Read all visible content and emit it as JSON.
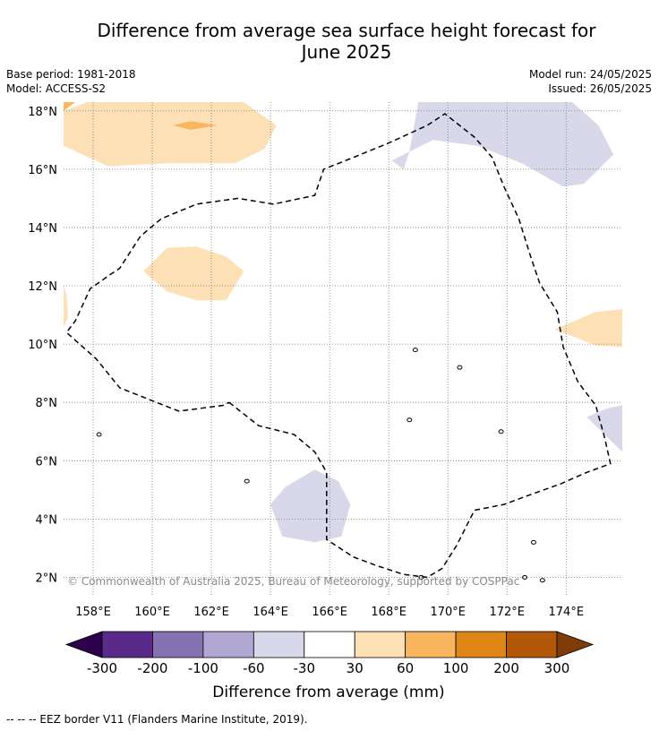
{
  "header": {
    "title_line1": "Difference from average sea surface height forecast for",
    "title_line2": "June 2025",
    "base_period": "Base period: 1981-2018",
    "model": "Model: ACCESS-S2",
    "model_run": "Model run: 24/05/2025",
    "issued": "Issued: 26/05/2025"
  },
  "map": {
    "copyright": "© Commonwealth of Australia 2025, Bureau of Meteorology, supported by COSPPac",
    "lon_ticks": [
      "158°E",
      "160°E",
      "162°E",
      "164°E",
      "166°E",
      "168°E",
      "170°E",
      "172°E",
      "174°E"
    ],
    "lat_ticks": [
      "18°N",
      "16°N",
      "14°N",
      "12°N",
      "10°N",
      "8°N",
      "6°N",
      "4°N",
      "2°N"
    ]
  },
  "colorbar": {
    "label": "Difference from average (mm)",
    "tick_labels": [
      "-300",
      "-200",
      "-100",
      "-60",
      "-30",
      "30",
      "60",
      "100",
      "200",
      "300"
    ],
    "colors": [
      "#592a8a",
      "#8572b0",
      "#b0a8d2",
      "#d8d8ea",
      "#ffffff",
      "#fde0b6",
      "#f9b65f",
      "#e08518",
      "#b35808"
    ],
    "under_color": "#2d004b",
    "over_color": "#7f3b08"
  },
  "footer": {
    "legend_text": "-- -- -- EEZ border V11 (Flanders Marine Institute, 2019)."
  },
  "chart_data": {
    "type": "heatmap",
    "title": "Difference from average sea surface height forecast for June 2025",
    "xlabel": "",
    "ylabel": "",
    "xlim": [
      157.0,
      175.9
    ],
    "ylim": [
      1.4,
      18.3
    ],
    "x_ticks": [
      158,
      160,
      162,
      164,
      166,
      168,
      170,
      172,
      174
    ],
    "y_ticks": [
      2,
      4,
      6,
      8,
      10,
      12,
      14,
      16,
      18
    ],
    "grid": true,
    "colorbar_levels_mm": [
      -300,
      -200,
      -100,
      -60,
      -30,
      30,
      60,
      100,
      200,
      300
    ],
    "regions": [
      {
        "level": "30 to 60",
        "polygon": [
          [
            157,
            18
          ],
          [
            157.8,
            18.3
          ],
          [
            163.1,
            18.3
          ],
          [
            164.2,
            17.5
          ],
          [
            163.8,
            16.7
          ],
          [
            162.8,
            16.2
          ],
          [
            160.5,
            16.2
          ],
          [
            158.5,
            16.1
          ],
          [
            157,
            16.8
          ]
        ]
      },
      {
        "level": "60 to 100",
        "polygon": [
          [
            157,
            18
          ],
          [
            157.4,
            18.3
          ],
          [
            157,
            18.3
          ]
        ]
      },
      {
        "level": "60 to 100",
        "polygon": [
          [
            160.7,
            17.5
          ],
          [
            161.3,
            17.65
          ],
          [
            162.2,
            17.5
          ],
          [
            161.3,
            17.35
          ]
        ]
      },
      {
        "level": "30 to 60",
        "polygon": [
          [
            159.7,
            12.5
          ],
          [
            160.5,
            13.3
          ],
          [
            161.5,
            13.35
          ],
          [
            162.5,
            13
          ],
          [
            163.1,
            12.5
          ],
          [
            162.5,
            11.5
          ],
          [
            161.5,
            11.5
          ],
          [
            160.5,
            11.8
          ]
        ]
      },
      {
        "level": "30 to 60",
        "polygon": [
          [
            157,
            12
          ],
          [
            157.1,
            11.7
          ],
          [
            157.15,
            10.9
          ],
          [
            157,
            10.6
          ]
        ]
      },
      {
        "level": "30 to 60",
        "polygon": [
          [
            173.6,
            10.5
          ],
          [
            175,
            11.1
          ],
          [
            175.9,
            11.2
          ],
          [
            175.9,
            9.9
          ],
          [
            175,
            9.95
          ],
          [
            174.4,
            10.2
          ]
        ]
      },
      {
        "level": "-60 to -30",
        "polygon": [
          [
            169,
            18.3
          ],
          [
            174.2,
            18.3
          ],
          [
            175.1,
            17.5
          ],
          [
            175.6,
            16.5
          ],
          [
            174.6,
            15.5
          ],
          [
            173.9,
            15.4
          ],
          [
            172.5,
            16.2
          ],
          [
            171,
            16.8
          ],
          [
            169.5,
            17
          ],
          [
            168.7,
            16.6
          ],
          [
            168.1,
            16.3
          ],
          [
            168.5,
            16
          ],
          [
            168.7,
            16.6
          ]
        ]
      },
      {
        "level": "-60 to -30",
        "polygon": [
          [
            174.7,
            7.5
          ],
          [
            175.4,
            7.8
          ],
          [
            175.9,
            7.9
          ],
          [
            175.9,
            6.3
          ],
          [
            175.4,
            6.8
          ]
        ]
      },
      {
        "level": "-60 to -30",
        "polygon": [
          [
            164,
            4.5
          ],
          [
            164.5,
            5.1
          ],
          [
            165.5,
            5.7
          ],
          [
            166.3,
            5.3
          ],
          [
            166.7,
            4.5
          ],
          [
            166.4,
            3.4
          ],
          [
            165.5,
            3.2
          ],
          [
            164.4,
            3.4
          ]
        ]
      }
    ],
    "eez_border": [
      [
        162.6,
        8.0
      ],
      [
        163.6,
        7.2
      ],
      [
        164.8,
        6.9
      ],
      [
        165.5,
        6.3
      ],
      [
        165.9,
        5.6
      ],
      [
        165.9,
        3.3
      ],
      [
        166.8,
        2.7
      ],
      [
        167.6,
        2.4
      ],
      [
        168.5,
        2.1
      ],
      [
        169.3,
        2
      ],
      [
        169.8,
        2.3
      ],
      [
        170.3,
        3.1
      ],
      [
        170.9,
        4.3
      ],
      [
        171.9,
        4.5
      ],
      [
        172.7,
        4.8
      ],
      [
        173.8,
        5.2
      ],
      [
        174.7,
        5.6
      ],
      [
        175.5,
        5.9
      ],
      [
        175.3,
        6.8
      ],
      [
        175,
        7.9
      ],
      [
        174.4,
        8.7
      ],
      [
        173.9,
        9.9
      ],
      [
        173.7,
        11.1
      ],
      [
        173.1,
        12.1
      ],
      [
        172.8,
        13
      ],
      [
        172.4,
        14.3
      ],
      [
        171.9,
        15.4
      ],
      [
        171.5,
        16.4
      ],
      [
        170.9,
        17.1
      ],
      [
        169.9,
        17.9
      ],
      [
        169.3,
        17.5
      ],
      [
        168,
        16.9
      ],
      [
        166.8,
        16.4
      ],
      [
        165.8,
        16
      ],
      [
        165.5,
        15.1
      ],
      [
        164.1,
        14.8
      ],
      [
        162.9,
        15
      ],
      [
        161.5,
        14.8
      ],
      [
        160.3,
        14.3
      ],
      [
        159.6,
        13.7
      ],
      [
        158.9,
        12.6
      ],
      [
        158.6,
        12.4
      ],
      [
        157.9,
        11.9
      ],
      [
        157.4,
        10.8
      ],
      [
        157.1,
        10.4
      ],
      [
        158.1,
        9.5
      ],
      [
        158.9,
        8.5
      ],
      [
        159.9,
        8.1
      ],
      [
        160.9,
        7.7
      ],
      [
        162.4,
        7.9
      ],
      [
        162.6,
        8.0
      ]
    ],
    "islands": [
      [
        158.2,
        6.9
      ],
      [
        163.2,
        5.3
      ],
      [
        169.1,
        2.0
      ],
      [
        172.9,
        3.2
      ],
      [
        172.6,
        2.0
      ],
      [
        173.2,
        1.9
      ],
      [
        171.8,
        7.0
      ],
      [
        168.7,
        7.4
      ],
      [
        170.4,
        9.2
      ],
      [
        168.9,
        9.8
      ]
    ]
  }
}
